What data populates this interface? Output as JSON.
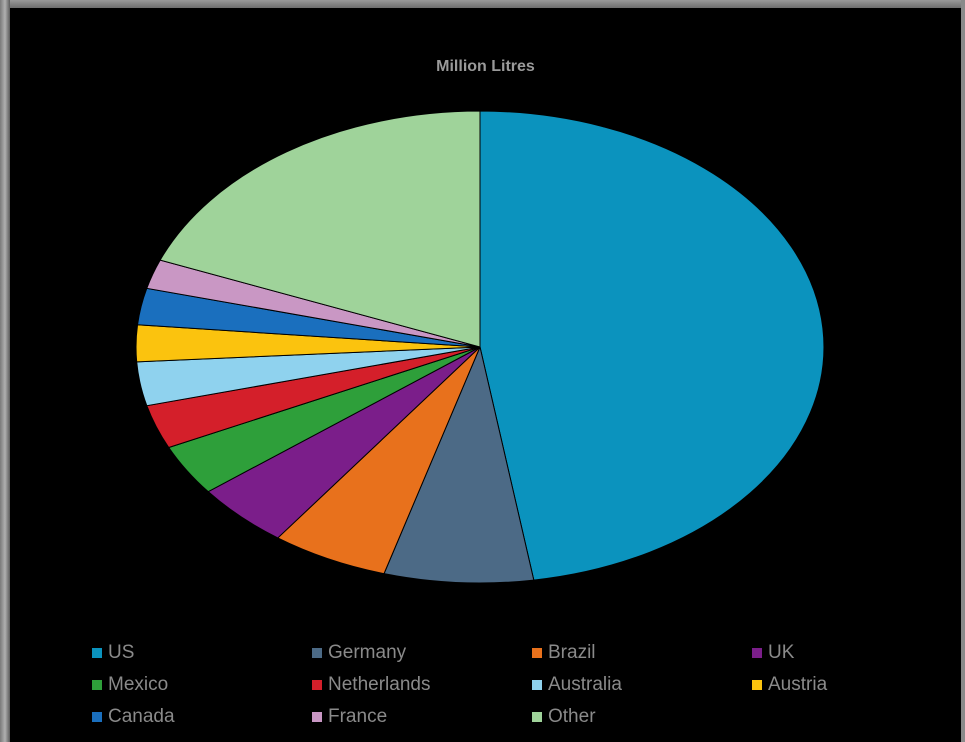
{
  "chart_data": {
    "type": "pie",
    "title": "Million Litres",
    "legend_position": "bottom",
    "categories": [
      "US",
      "Germany",
      "Brazil",
      "UK",
      "Mexico",
      "Netherlands",
      "Australia",
      "Austria",
      "Canada",
      "France",
      "Other"
    ],
    "values": [
      47.5,
      7.0,
      5.5,
      4.5,
      3.5,
      3.0,
      3.0,
      2.5,
      2.5,
      2.0,
      19.0
    ],
    "colors": [
      "#0b93be",
      "#4c6a86",
      "#e8711c",
      "#7b1e8a",
      "#2e9f3a",
      "#d41f2a",
      "#8fd2ee",
      "#fbc30e",
      "#1a6fbe",
      "#c997c4",
      "#9fd39a"
    ]
  }
}
